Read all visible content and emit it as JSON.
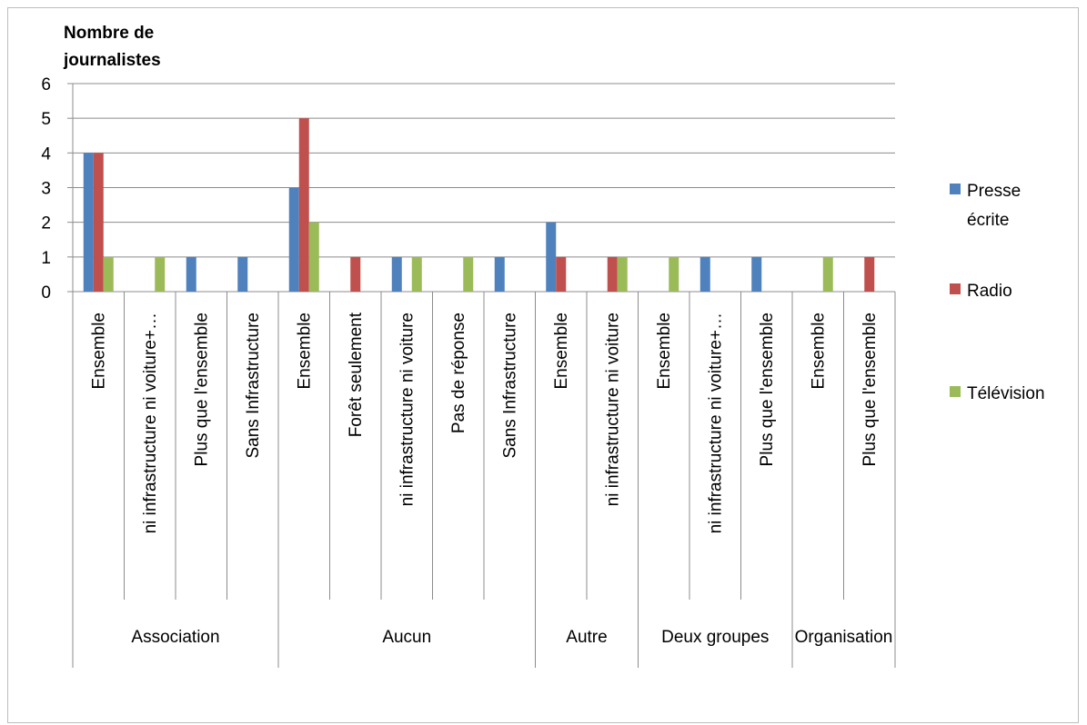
{
  "chart_data": {
    "type": "bar",
    "ylabel": "Nombre de journalistes",
    "ylim": [
      0,
      6
    ],
    "yticks": [
      "0",
      "1",
      "2",
      "3",
      "4",
      "5",
      "6"
    ],
    "grid": true,
    "legend_position": "right",
    "groups": [
      {
        "label": "Association",
        "categories": [
          "Ensemble",
          "ni infrastructure ni voiture+…",
          "Plus que l'ensemble",
          "Sans Infrastructure"
        ]
      },
      {
        "label": "Aucun",
        "categories": [
          "Ensemble",
          "Forêt seulement",
          "ni infrastructure ni voiture",
          "Pas de réponse",
          "Sans Infrastructure"
        ]
      },
      {
        "label": "Autre",
        "categories": [
          "Ensemble",
          "ni infrastructure ni voiture"
        ]
      },
      {
        "label": "Deux groupes",
        "categories": [
          "Ensemble",
          "ni infrastructure ni voiture+…",
          "Plus que l'ensemble"
        ]
      },
      {
        "label": "Organisation",
        "categories": [
          "Ensemble",
          "Plus que l'ensemble"
        ]
      }
    ],
    "series": [
      {
        "name": "Presse écrite",
        "color": "#4f81bd",
        "values": [
          4,
          0,
          1,
          1,
          3,
          0,
          1,
          0,
          1,
          2,
          0,
          0,
          1,
          1,
          0,
          0
        ]
      },
      {
        "name": "Radio",
        "color": "#c0504d",
        "values": [
          4,
          0,
          0,
          0,
          5,
          1,
          0,
          0,
          0,
          1,
          1,
          0,
          0,
          0,
          0,
          1
        ]
      },
      {
        "name": "Télévision",
        "color": "#9bbb59",
        "values": [
          1,
          1,
          0,
          0,
          2,
          0,
          1,
          1,
          0,
          0,
          1,
          1,
          0,
          0,
          1,
          0
        ]
      }
    ],
    "legend_lines": [
      [
        "Presse",
        "écrite"
      ],
      [
        "Radio"
      ],
      [
        "Télévision"
      ]
    ]
  }
}
